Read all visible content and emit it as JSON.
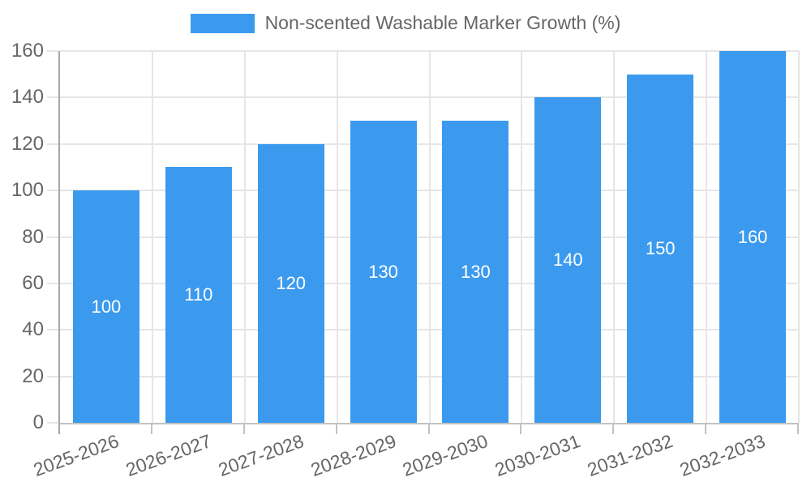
{
  "chart_data": {
    "type": "bar",
    "legend_label": "Non-scented Washable Marker Growth (%)",
    "legend_position": "top",
    "categories": [
      "2025-2026",
      "2026-2027",
      "2027-2028",
      "2028-2029",
      "2029-2030",
      "2030-2031",
      "2031-2032",
      "2032-2033"
    ],
    "values": [
      100,
      110,
      120,
      130,
      130,
      140,
      150,
      160
    ],
    "xlabel": "",
    "ylabel": "",
    "ylim": [
      0,
      160
    ],
    "yticks": [
      0,
      20,
      40,
      60,
      80,
      100,
      120,
      140,
      160
    ],
    "grid": true,
    "colors": {
      "bar": "#3B9AEE",
      "bar_label": "#FFFFFF",
      "tick_text": "#666666",
      "grid": "#E6E6E6",
      "axis_line": "#A6A6A6",
      "baseline": "#C2C2C2",
      "background": "#FFFFFF"
    }
  }
}
